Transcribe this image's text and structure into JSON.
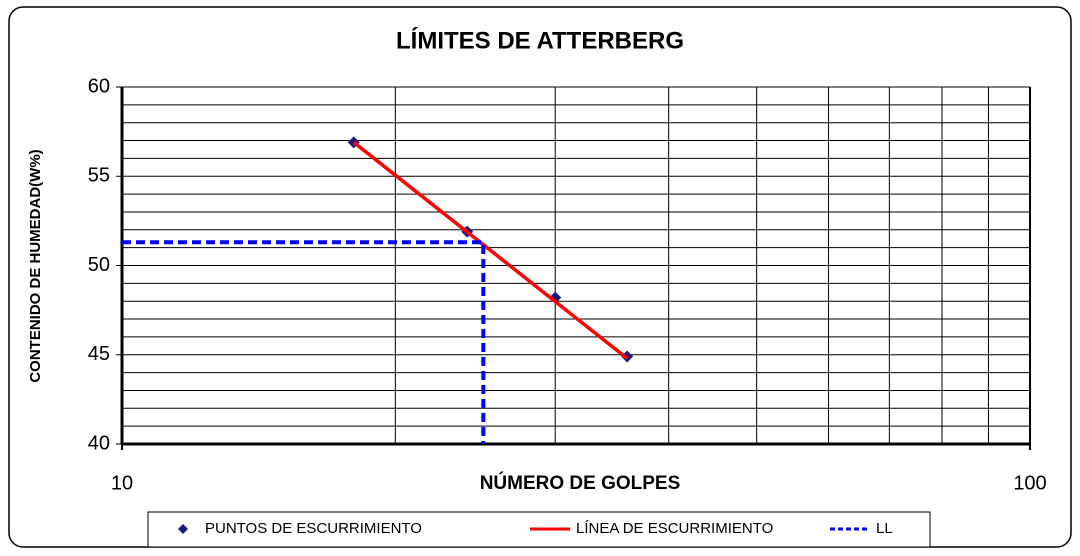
{
  "chart_data": {
    "type": "line",
    "title": "LÍMITES DE ATTERBERG",
    "x_label": "NÚMERO DE GOLPES",
    "y_label": "CONTENIDO DE HUMEDAD(W%)",
    "xscale": "log",
    "xlim": [
      10,
      100
    ],
    "xticks": [
      10,
      100
    ],
    "xgrid": [
      20,
      30,
      40,
      50,
      60,
      70,
      80,
      90
    ],
    "ylim": [
      40,
      60
    ],
    "yticks": [
      40,
      45,
      50,
      55,
      60
    ],
    "ygrid": [
      41,
      42,
      43,
      44,
      46,
      47,
      48,
      49,
      51,
      52,
      53,
      54,
      56,
      57,
      58,
      59
    ],
    "legend": "bottom",
    "series": [
      {
        "name": "PUNTOS DE ESCURRIMIENTO",
        "color": "#1a1a80",
        "style": "marker",
        "x": [
          18,
          24,
          30,
          36
        ],
        "values": [
          56.9,
          51.9,
          48.2,
          44.9
        ]
      },
      {
        "name": "LÍNEA DE ESCURRIMIENTO",
        "color": "#ff0000",
        "style": "solid",
        "x": [
          18,
          36
        ],
        "values": [
          56.9,
          44.8
        ]
      },
      {
        "name": "LL",
        "color": "#0000ff",
        "style": "dashed",
        "x": [
          10,
          25,
          25
        ],
        "values": [
          51.3,
          51.3,
          40
        ]
      }
    ]
  }
}
